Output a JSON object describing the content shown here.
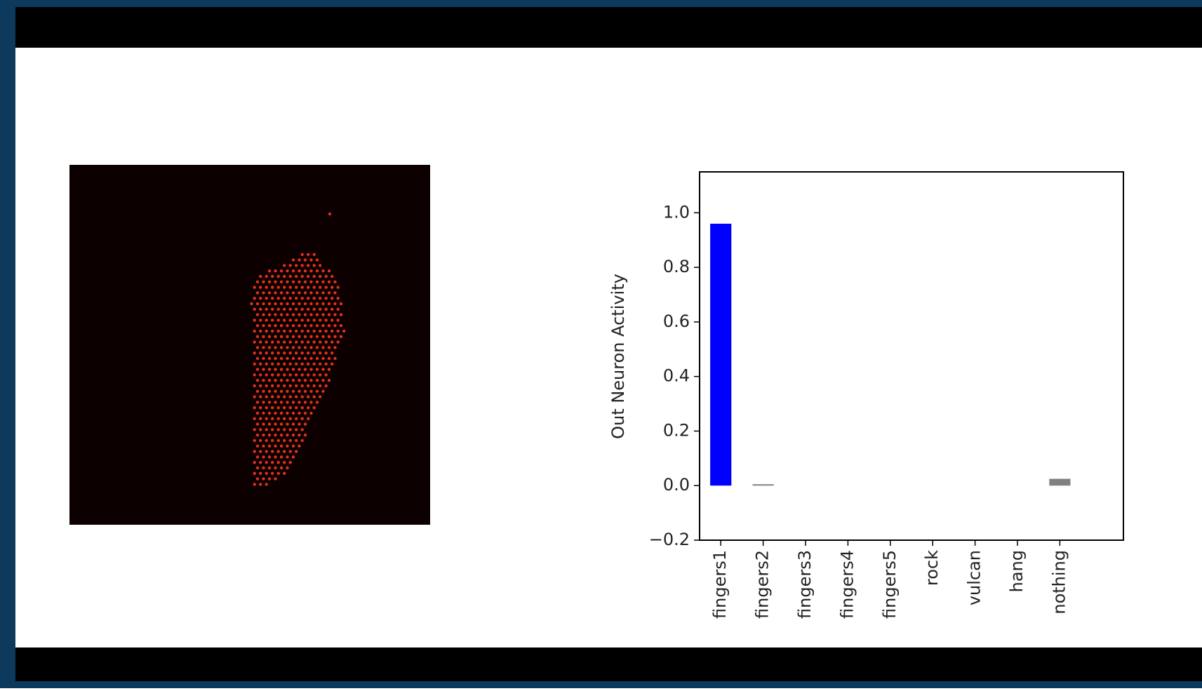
{
  "chart_data": {
    "type": "bar",
    "ylabel": "Out Neuron Activity",
    "categories": [
      "fingers1",
      "fingers2",
      "fingers3",
      "fingers4",
      "fingers5",
      "rock",
      "vulcan",
      "hang",
      "nothing"
    ],
    "values": [
      0.96,
      0.005,
      0,
      0,
      0,
      0,
      0,
      0,
      0.025
    ],
    "colors": [
      "#0000ff",
      "#808080",
      "#808080",
      "#808080",
      "#808080",
      "#808080",
      "#808080",
      "#808080",
      "#808080"
    ],
    "ylim": [
      -0.2,
      1.15
    ],
    "yticks": [
      {
        "value": -0.2,
        "label": "−0.2"
      },
      {
        "value": 0,
        "label": "0.0"
      },
      0.2,
      0.4,
      0.6,
      0.8,
      {
        "value": 1,
        "label": "1.0"
      }
    ],
    "grid": false
  }
}
